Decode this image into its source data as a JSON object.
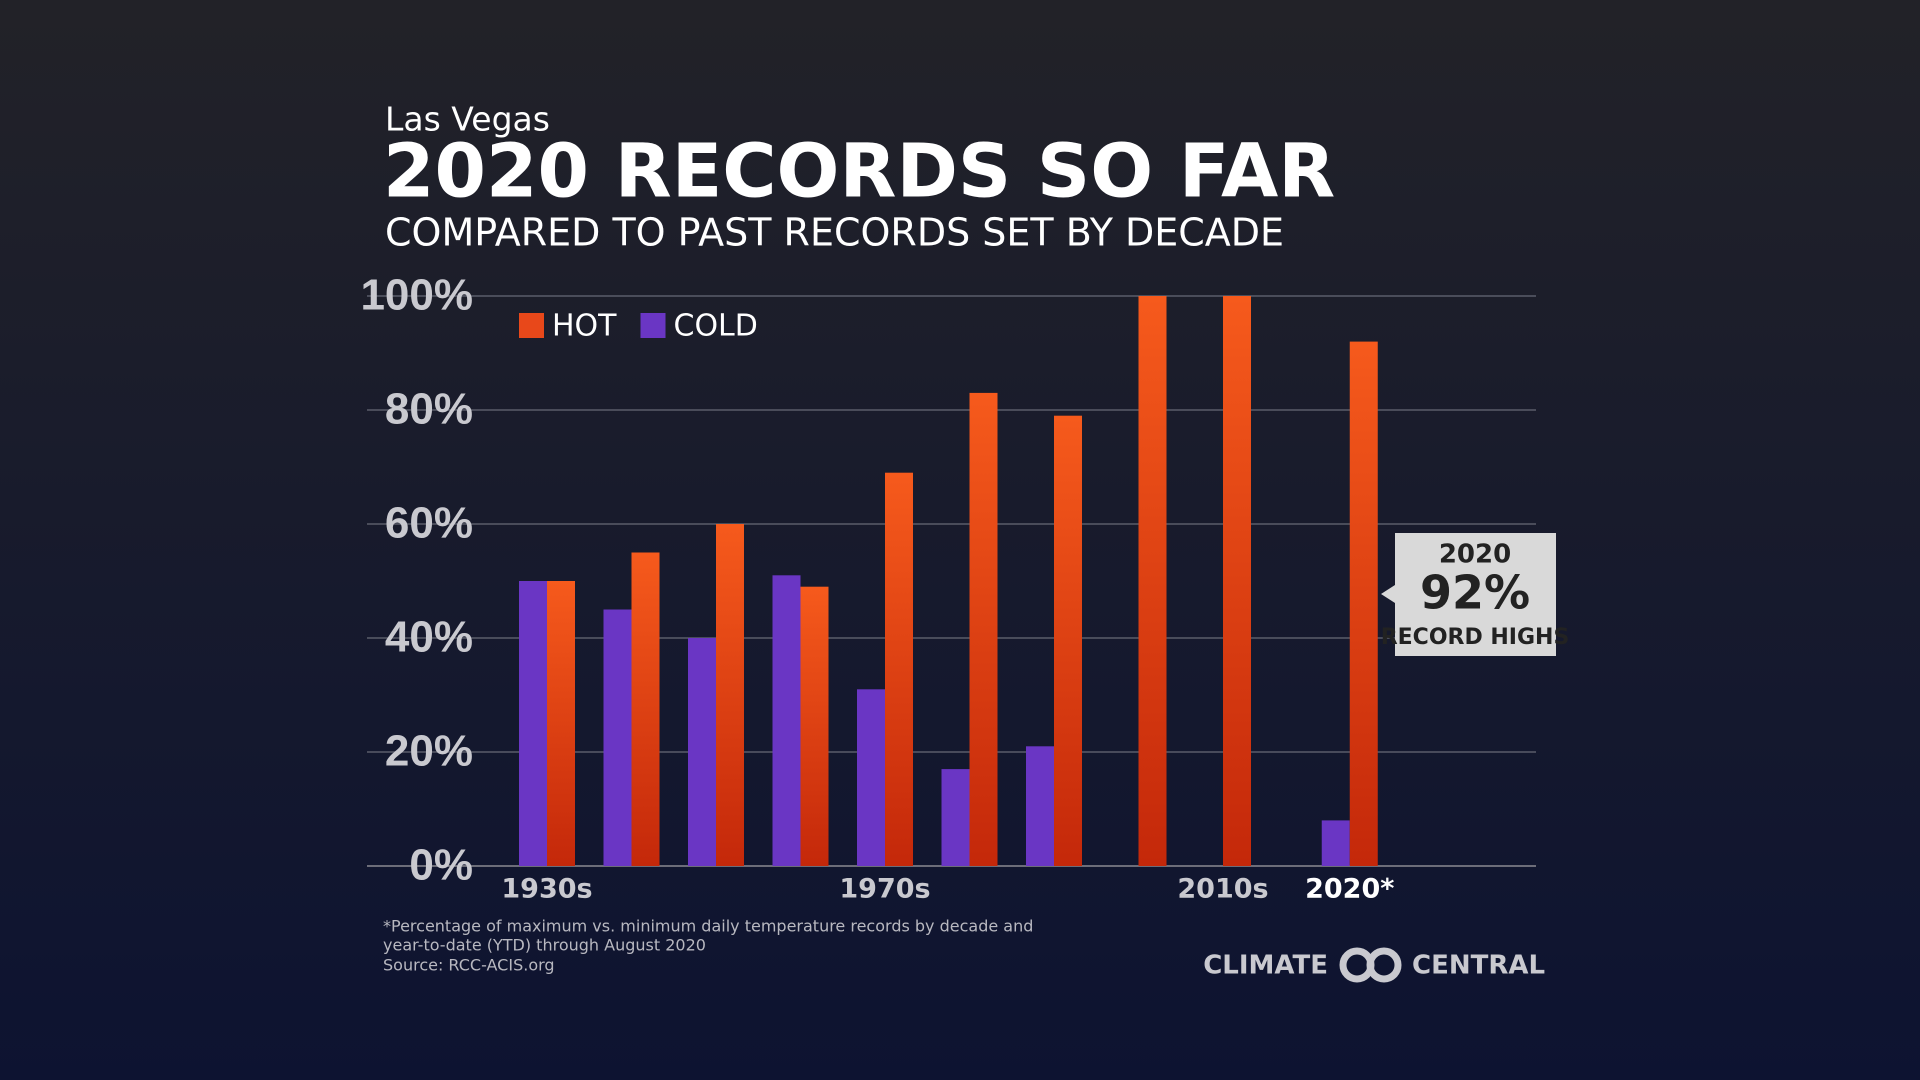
{
  "chart_data": {
    "type": "bar",
    "pretitle": "Las Vegas",
    "title": "2020 RECORDS SO FAR",
    "subtitle": "COMPARED TO PAST RECORDS SET BY DECADE",
    "categories": [
      "1930s",
      null,
      null,
      null,
      "1970s",
      null,
      null,
      null,
      "2010s",
      "2020*"
    ],
    "series": [
      {
        "name": "COLD",
        "color": "#6a36c4",
        "values": [
          50,
          45,
          40,
          51,
          31,
          17,
          21,
          0,
          0,
          8
        ]
      },
      {
        "name": "HOT",
        "color": "#e8481a",
        "values": [
          50,
          55,
          60,
          49,
          69,
          83,
          79,
          100,
          100,
          92
        ]
      }
    ],
    "ylim": [
      0,
      100
    ],
    "yticks": [
      {
        "value": 0,
        "label": "0%"
      },
      {
        "value": 20,
        "label": "20%"
      },
      {
        "value": 40,
        "label": "40%"
      },
      {
        "value": 60,
        "label": "60%"
      },
      {
        "value": 80,
        "label": "80%"
      },
      {
        "value": 100,
        "label": "100%"
      }
    ],
    "grid": true,
    "legend": "top-left",
    "annotation": {
      "lines": [
        "2020",
        "92%",
        "RECORD HIGHS"
      ]
    },
    "footnote": [
      "*Percentage of maximum vs. minimum daily temperature records by decade and",
      "year-to-date (YTD) through August 2020",
      "Source: RCC-ACIS.org"
    ],
    "logo": [
      "CLIMATE",
      "CENTRAL"
    ]
  }
}
